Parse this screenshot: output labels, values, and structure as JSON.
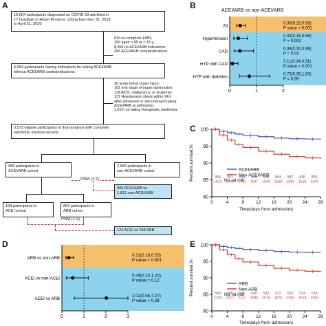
{
  "panels": {
    "a": "A",
    "b": "B",
    "c": "C",
    "d": "D",
    "e": "E"
  },
  "flow": {
    "box1": [
      "15,504 participants diagnosed as COVID-19 admitted in",
      "17 hospitals in Hubei Province, China from Dec 31, 2019",
      "to April 21, 2020"
    ],
    "excl1": [
      "819 no complete EMR;",
      "399 aged > 85 or < 18 y;",
      "8,966 no ACEI/ARB indications;",
      "266 ACEI/ARB contraindications"
    ],
    "box2": [
      "5,054 participants having indications for taking ACEI/ARB",
      "without ACEI/ARB contraindications"
    ],
    "excl2": [
      "36 acute lethal organ injury;",
      "181 end stage of organ dysfunction;",
      "118 AIDS, malignancy, or leukemia;",
      "137 Hypotension shock within 24 h",
      "after admission or discontinued taking",
      "ACEI/ARB at admission;",
      "1,010 not taking therapeutic medicines"
    ],
    "box3": [
      "3,572 eligible participants in final analysis with complete",
      "electronic medical records"
    ],
    "box4": [
      "989 participants in",
      "ACEI/ARB cohort"
    ],
    "box5": [
      "2,583 participants in",
      "non-ACEI/ARB cohort"
    ],
    "psm1": "PSM (1:2)",
    "box6": [
      "906 ACEI/ARB vs",
      "1,812 non-ACEI/ARB"
    ],
    "box7": [
      "158 participants in",
      "ACEI cohort"
    ],
    "box8": [
      "852 participants in",
      "ARB cohort"
    ],
    "psm2": "PSM (1:2)",
    "box9": [
      "124 ACEI vs 248 ARB"
    ]
  },
  "forest_b": {
    "title": "ACEI/ARB vs non-ACEI/ARB",
    "rows": [
      {
        "label": "All",
        "or": 0.39,
        "lo": 0.26,
        "hi": 0.58,
        "ci_text": "0.39(0.26,0.58)",
        "p_text": "P value < 0.001"
      },
      {
        "label": "Hypertension",
        "or": 0.32,
        "lo": 0.15,
        "hi": 0.66,
        "ci_text": "0.32(0.15,0.66)",
        "p_text": "P = 0.002"
      },
      {
        "label": "CAD",
        "or": 0.38,
        "lo": 0.16,
        "hi": 0.89,
        "ci_text": "0.38(0.16,0.89)",
        "p_text": "P = 0.03"
      },
      {
        "label": "HYP with CAD",
        "or": 0.11,
        "lo": 0.04,
        "hi": 0.31,
        "ci_text": "0.11(0.04,0.31)",
        "p_text": "P value < 0.001"
      },
      {
        "label": "HYP with diabetes",
        "or": 0.73,
        "lo": 0.36,
        "hi": 1.5,
        "ci_text": "0.73(0.36,1.50)",
        "p_text": "P = 0.39"
      }
    ],
    "xticks": [
      0,
      1,
      2
    ],
    "colors": {
      "top": "#f6bf6a",
      "bottom": "#8dd3ee"
    }
  },
  "forest_d": {
    "rows": [
      {
        "label": "ARB vs non-ARB",
        "or": 0.31,
        "lo": 0.18,
        "hi": 0.53,
        "ci_text": "0.31(0.18,0.53)",
        "p_text": "P value < 0.001"
      },
      {
        "label": "ACEI vs non-ACEI",
        "or": 0.49,
        "lo": 0.2,
        "hi": 1.2,
        "ci_text": "0.49(0.20,1.20)",
        "p_text": "P value = 0.12"
      },
      {
        "label": "ACEI vs ARB",
        "or": 2.02,
        "lo": 0.56,
        "hi": 7.27,
        "ci_text": "2.02(0.56,7.27)",
        "p_text": "P value = 0.28"
      }
    ],
    "xticks": [
      0,
      1,
      2,
      3
    ]
  },
  "chart_data": [
    {
      "type": "line",
      "panel": "C",
      "ylabel": "Percent survival,%",
      "xlabel": "Time(days from admission)",
      "ylim": [
        80,
        100
      ],
      "xlim": [
        0,
        28
      ],
      "xticks": [
        0,
        4,
        8,
        12,
        16,
        20,
        24,
        28
      ],
      "yticks": [
        80,
        85,
        90,
        95,
        100
      ],
      "series": [
        {
          "name": "ACEI/ARB",
          "color": "#3a58b0",
          "x": [
            0,
            2,
            4,
            6,
            8,
            12,
            16,
            20,
            24,
            28
          ],
          "values": [
            100,
            99.4,
            99.0,
            98.6,
            98.2,
            97.8,
            97.4,
            97.2,
            97.1,
            96.9
          ]
        },
        {
          "name": "Non-ACEI/ARB",
          "color": "#e0302e",
          "x": [
            0,
            2,
            4,
            6,
            8,
            12,
            16,
            20,
            24,
            28
          ],
          "values": [
            100,
            98.3,
            96.8,
            95.5,
            94.6,
            93.5,
            92.6,
            91.9,
            91.5,
            91.2
          ]
        }
      ],
      "risk_title": "No. at risk",
      "risk": [
        {
          "color": "#3a58b0",
          "values": [
            "906",
            "901",
            "895",
            "894",
            "884",
            "864",
            "847",
            "836",
            "836"
          ]
        },
        {
          "color": "#e0302e",
          "values": [
            "1812",
            "1795",
            "1741",
            "1697",
            "1639",
            "1588",
            "1556",
            "1559",
            "1540"
          ]
        }
      ]
    },
    {
      "type": "line",
      "panel": "E",
      "ylabel": "Percent survival,%",
      "xlabel": "Time(days from admission)",
      "ylim": [
        80,
        100
      ],
      "xlim": [
        0,
        28
      ],
      "xticks": [
        0,
        4,
        8,
        12,
        16,
        20,
        24,
        28
      ],
      "yticks": [
        80,
        85,
        90,
        95,
        100
      ],
      "series": [
        {
          "name": "ARB",
          "color": "#3a58b0",
          "x": [
            0,
            2,
            4,
            6,
            8,
            12,
            16,
            20,
            24,
            28
          ],
          "values": [
            100,
            99.5,
            99.2,
            98.9,
            98.6,
            98.3,
            98.0,
            97.8,
            97.7,
            97.6
          ]
        },
        {
          "name": "Non-ARB",
          "color": "#e0302e",
          "x": [
            0,
            2,
            4,
            6,
            8,
            12,
            16,
            20,
            24,
            28
          ],
          "values": [
            100,
            98.5,
            97.0,
            95.8,
            94.8,
            93.8,
            92.9,
            92.3,
            92.0,
            91.8
          ]
        }
      ],
      "risk_title": "No. at risk",
      "risk": [
        {
          "color": "#3a58b0",
          "values": [
            "560",
            "558",
            "555",
            "545",
            "532",
            "522",
            "520",
            "514",
            "514"
          ]
        },
        {
          "color": "#e0302e",
          "values": [
            "2240",
            "2217",
            "2147",
            "2086",
            "2015",
            "1975",
            "1940",
            "1918",
            "1918"
          ]
        }
      ]
    }
  ]
}
